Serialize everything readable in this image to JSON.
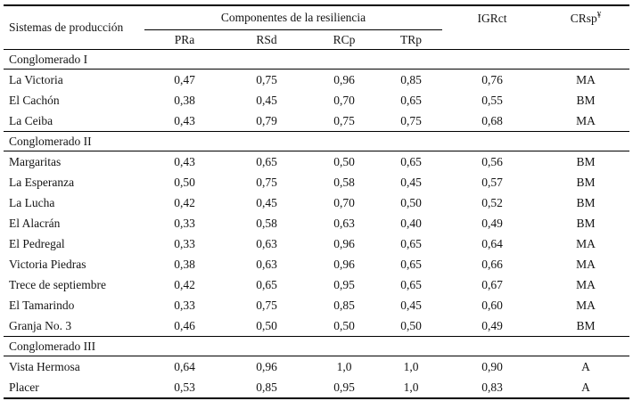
{
  "table": {
    "header": {
      "systems_label": "Sistemas de producción",
      "components_group_label": "Componentes de la resiliencia",
      "component_columns": [
        "PRa",
        "RSd",
        "RCp",
        "TRp"
      ],
      "igrct_label": "IGRct",
      "crsp_label": "CRsp",
      "crsp_footnote_mark": "¥"
    },
    "sections": [
      {
        "title": "Conglomerado I",
        "rows": [
          {
            "name": "La Victoria",
            "values": [
              "0,47",
              "0,75",
              "0,96",
              "0,85",
              "0,76",
              "MA"
            ]
          },
          {
            "name": "El Cachón",
            "values": [
              "0,38",
              "0,45",
              "0,70",
              "0,65",
              "0,55",
              "BM"
            ]
          },
          {
            "name": "La Ceiba",
            "values": [
              "0,43",
              "0,79",
              "0,75",
              "0,75",
              "0,68",
              "MA"
            ]
          }
        ]
      },
      {
        "title": "Conglomerado II",
        "rows": [
          {
            "name": "Margaritas",
            "values": [
              "0,43",
              "0,65",
              "0,50",
              "0,65",
              "0,56",
              "BM"
            ]
          },
          {
            "name": "La Esperanza",
            "values": [
              "0,50",
              "0,75",
              "0,58",
              "0,45",
              "0,57",
              "BM"
            ]
          },
          {
            "name": "La Lucha",
            "values": [
              "0,42",
              "0,45",
              "0,70",
              "0,50",
              "0,52",
              "BM"
            ]
          },
          {
            "name": "El Alacrán",
            "values": [
              "0,33",
              "0,58",
              "0,63",
              "0,40",
              "0,49",
              "BM"
            ]
          },
          {
            "name": "El Pedregal",
            "values": [
              "0,33",
              "0,63",
              "0,96",
              "0,65",
              "0,64",
              "MA"
            ]
          },
          {
            "name": "Victoria Piedras",
            "values": [
              "0,38",
              "0,63",
              "0,96",
              "0,65",
              "0,66",
              "MA"
            ]
          },
          {
            "name": "Trece de septiembre",
            "values": [
              "0,42",
              "0,65",
              "0,95",
              "0,65",
              "0,67",
              "MA"
            ]
          },
          {
            "name": "El Tamarindo",
            "values": [
              "0,33",
              "0,75",
              "0,85",
              "0,45",
              "0,60",
              "MA"
            ]
          },
          {
            "name": "Granja No. 3",
            "values": [
              "0,46",
              "0,50",
              "0,50",
              "0,50",
              "0,49",
              "BM"
            ]
          }
        ]
      },
      {
        "title": "Conglomerado III",
        "rows": [
          {
            "name": "Vista Hermosa",
            "values": [
              "0,64",
              "0,96",
              "1,0",
              "1,0",
              "0,90",
              "A"
            ]
          },
          {
            "name": "Placer",
            "values": [
              "0,53",
              "0,85",
              "0,95",
              "1,0",
              "0,83",
              "A"
            ]
          }
        ]
      }
    ]
  }
}
